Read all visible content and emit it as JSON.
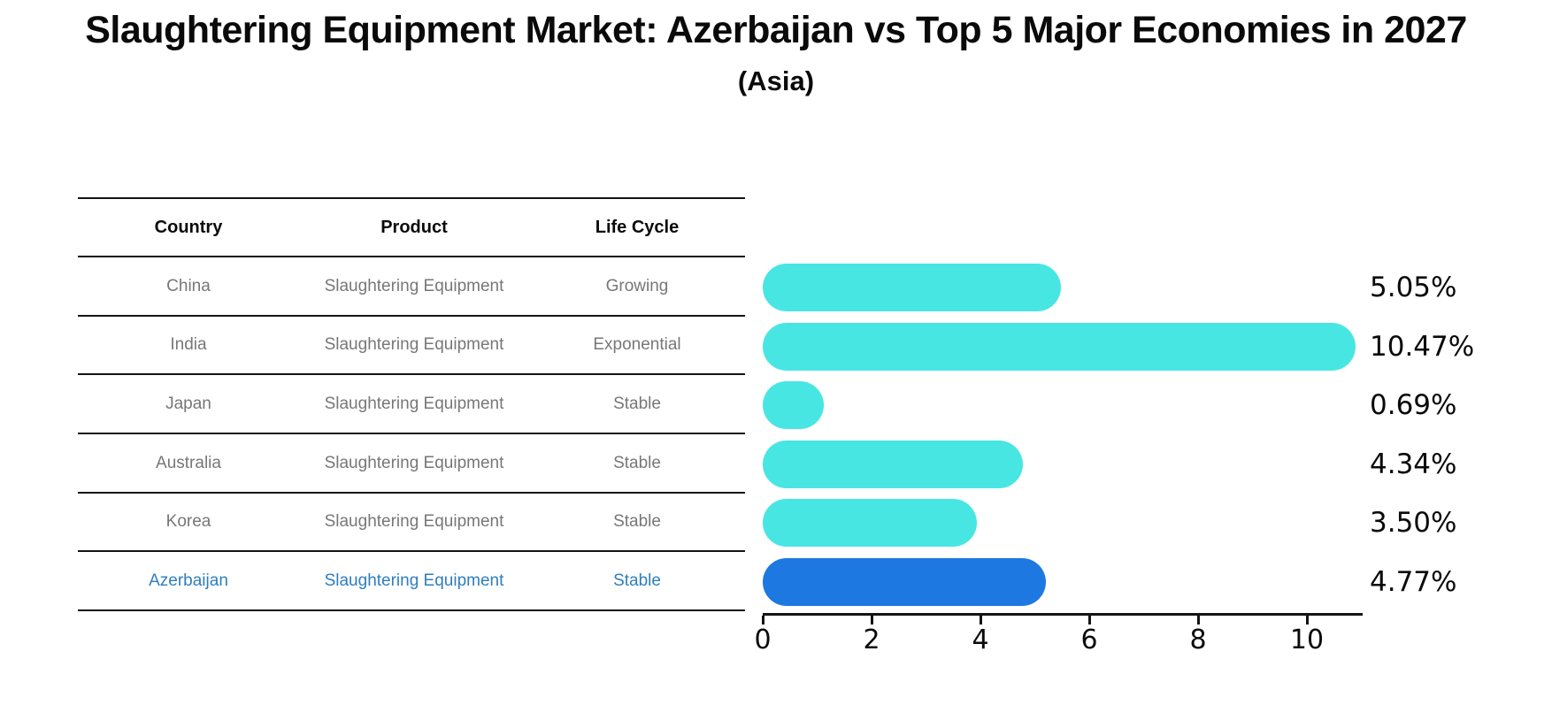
{
  "title": "Slaughtering Equipment Market: Azerbaijan vs Top 5 Major Economies in 2027",
  "subtitle": "(Asia)",
  "table": {
    "headers": [
      "Country",
      "Product",
      "Life Cycle"
    ],
    "rows": [
      {
        "country": "China",
        "product": "Slaughtering Equipment",
        "life_cycle": "Growing",
        "highlight": false
      },
      {
        "country": "India",
        "product": "Slaughtering Equipment",
        "life_cycle": "Exponential",
        "highlight": false
      },
      {
        "country": "Japan",
        "product": "Slaughtering Equipment",
        "life_cycle": "Stable",
        "highlight": false
      },
      {
        "country": "Australia",
        "product": "Slaughtering Equipment",
        "life_cycle": "Stable",
        "highlight": false
      },
      {
        "country": "Korea",
        "product": "Slaughtering Equipment",
        "life_cycle": "Stable",
        "highlight": false
      },
      {
        "country": "Azerbaijan",
        "product": "Slaughtering Equipment",
        "life_cycle": "Stable",
        "highlight": true
      }
    ]
  },
  "chart_data": {
    "type": "bar",
    "orientation": "horizontal",
    "title": "Slaughtering Equipment Market: Azerbaijan vs Top 5 Major Economies in 2027",
    "subtitle": "(Asia)",
    "categories": [
      "China",
      "India",
      "Japan",
      "Australia",
      "Korea",
      "Azerbaijan"
    ],
    "values": [
      5.05,
      10.47,
      0.69,
      4.34,
      3.5,
      4.77
    ],
    "value_labels": [
      "5.05%",
      "10.47%",
      "0.69%",
      "4.34%",
      "3.50%",
      "4.77%"
    ],
    "x_ticks": [
      "0",
      "2",
      "4",
      "6",
      "8",
      "10"
    ],
    "xlim": [
      0,
      11
    ],
    "ylabel": "",
    "xlabel": "",
    "grid": false,
    "legend": false,
    "bar_color": "#47E6E3",
    "highlight_color": "#1E78E1",
    "highlight_index": 5
  },
  "colors": {
    "bar": "#47E6E3",
    "highlight_bar": "#1E78E1",
    "highlight_text": "#2E7EBF",
    "row_text": "#777777",
    "line": "#141414"
  }
}
